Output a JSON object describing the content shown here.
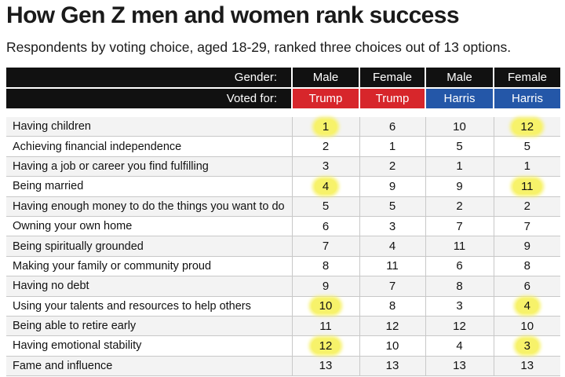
{
  "chart_data": {
    "type": "table",
    "title": "How Gen Z men and women rank success",
    "subtitle": "Respondents by voting choice, aged 18-29, ranked three choices out of 13 options.",
    "header_labels": {
      "gender": "Gender:",
      "voted_for": "Voted for:"
    },
    "columns": [
      {
        "gender": "Male",
        "voted_for": "Trump",
        "color": "#d7262b"
      },
      {
        "gender": "Female",
        "voted_for": "Trump",
        "color": "#d7262b"
      },
      {
        "gender": "Male",
        "voted_for": "Harris",
        "color": "#2457a8"
      },
      {
        "gender": "Female",
        "voted_for": "Harris",
        "color": "#2457a8"
      }
    ],
    "highlight_color": "#f7f26a",
    "rows": [
      {
        "label": "Having children",
        "values": [
          "1",
          "6",
          "10",
          "12"
        ],
        "highlighted": [
          true,
          false,
          false,
          true
        ]
      },
      {
        "label": "Achieving financial independence",
        "values": [
          "2",
          "1",
          "5",
          "5"
        ],
        "highlighted": [
          false,
          false,
          false,
          false
        ]
      },
      {
        "label": "Having a job or career you find fulfilling",
        "values": [
          "3",
          "2",
          "1",
          "1"
        ],
        "highlighted": [
          false,
          false,
          false,
          false
        ]
      },
      {
        "label": "Being married",
        "values": [
          "4",
          "9",
          "9",
          "11"
        ],
        "highlighted": [
          true,
          false,
          false,
          true
        ]
      },
      {
        "label": "Having enough money to do the things you want to do",
        "values": [
          "5",
          "5",
          "2",
          "2"
        ],
        "highlighted": [
          false,
          false,
          false,
          false
        ]
      },
      {
        "label": "Owning your own home",
        "values": [
          "6",
          "3",
          "7",
          "7"
        ],
        "highlighted": [
          false,
          false,
          false,
          false
        ]
      },
      {
        "label": "Being spiritually grounded",
        "values": [
          "7",
          "4",
          "11",
          "9"
        ],
        "highlighted": [
          false,
          false,
          false,
          false
        ]
      },
      {
        "label": "Making your family or community proud",
        "values": [
          "8",
          "11",
          "6",
          "8"
        ],
        "highlighted": [
          false,
          false,
          false,
          false
        ]
      },
      {
        "label": "Having no debt",
        "values": [
          "9",
          "7",
          "8",
          "6"
        ],
        "highlighted": [
          false,
          false,
          false,
          false
        ]
      },
      {
        "label": "Using your talents and resources to help others",
        "values": [
          "10",
          "8",
          "3",
          "4"
        ],
        "highlighted": [
          true,
          false,
          false,
          true
        ]
      },
      {
        "label": "Being able to retire early",
        "values": [
          "11",
          "12",
          "12",
          "10"
        ],
        "highlighted": [
          false,
          false,
          false,
          false
        ]
      },
      {
        "label": "Having emotional stability",
        "values": [
          "12",
          "10",
          "4",
          "3"
        ],
        "highlighted": [
          true,
          false,
          false,
          true
        ]
      },
      {
        "label": "Fame and influence",
        "values": [
          "13",
          "13",
          "13",
          "13"
        ],
        "highlighted": [
          false,
          false,
          false,
          false
        ]
      }
    ]
  }
}
